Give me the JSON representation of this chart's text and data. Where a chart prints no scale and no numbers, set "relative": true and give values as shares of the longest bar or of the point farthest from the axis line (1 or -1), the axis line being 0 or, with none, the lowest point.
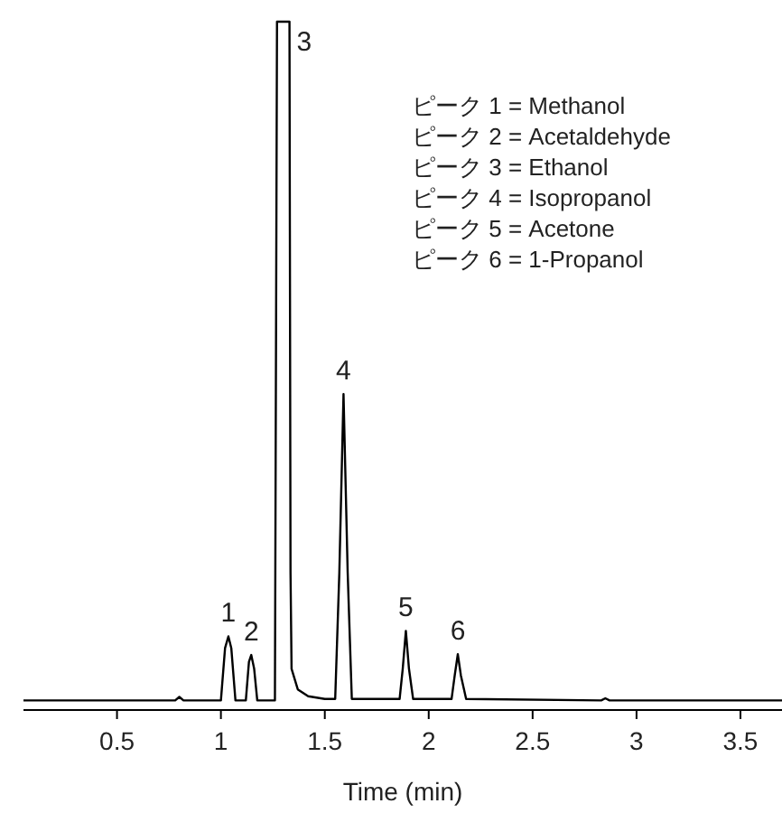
{
  "chart_data": {
    "type": "line",
    "relative": true,
    "xlabel": "Time (min)",
    "xlim": [
      0.05,
      3.7
    ],
    "xticks": [
      0.5,
      1,
      1.5,
      2,
      2.5,
      3,
      3.5
    ],
    "x": [
      0.05,
      0.78,
      0.8,
      0.82,
      1.0,
      1.02,
      1.036,
      1.05,
      1.07,
      1.12,
      1.135,
      1.146,
      1.16,
      1.175,
      1.26,
      1.27,
      1.33,
      1.335,
      1.34,
      1.37,
      1.42,
      1.5,
      1.55,
      1.57,
      1.59,
      1.61,
      1.63,
      1.86,
      1.875,
      1.89,
      1.905,
      1.925,
      2.11,
      2.125,
      2.14,
      2.155,
      2.18,
      2.83,
      2.85,
      2.87,
      3.7
    ],
    "series": [
      {
        "color": "#000000",
        "values": [
          0.014,
          0.014,
          0.019,
          0.014,
          0.014,
          0.09,
          0.107,
          0.09,
          0.014,
          0.014,
          0.07,
          0.08,
          0.06,
          0.014,
          0.014,
          1,
          1,
          0.2,
          0.06,
          0.03,
          0.02,
          0.016,
          0.016,
          0.2,
          0.459,
          0.2,
          0.016,
          0.016,
          0.06,
          0.115,
          0.06,
          0.016,
          0.016,
          0.05,
          0.081,
          0.05,
          0.016,
          0.014,
          0.017,
          0.014,
          0.014
        ]
      }
    ],
    "annotations": [
      {
        "text": "1",
        "x": 1.036,
        "y": 0.107
      },
      {
        "text": "2",
        "x": 1.146,
        "y": 0.08
      },
      {
        "text": "3",
        "x": 1.33,
        "y": 1
      },
      {
        "text": "4",
        "x": 1.59,
        "y": 0.459
      },
      {
        "text": "5",
        "x": 1.89,
        "y": 0.115
      },
      {
        "text": "6",
        "x": 2.14,
        "y": 0.081
      },
      "ピーク 1 = Methanol",
      "ピーク 2 = Acetaldehyde",
      "ピーク 3 = Ethanol",
      "ピーク 4 = Isopropanol",
      "ピーク 5 = Acetone",
      "ピーク 6 = 1-Propanol"
    ]
  }
}
